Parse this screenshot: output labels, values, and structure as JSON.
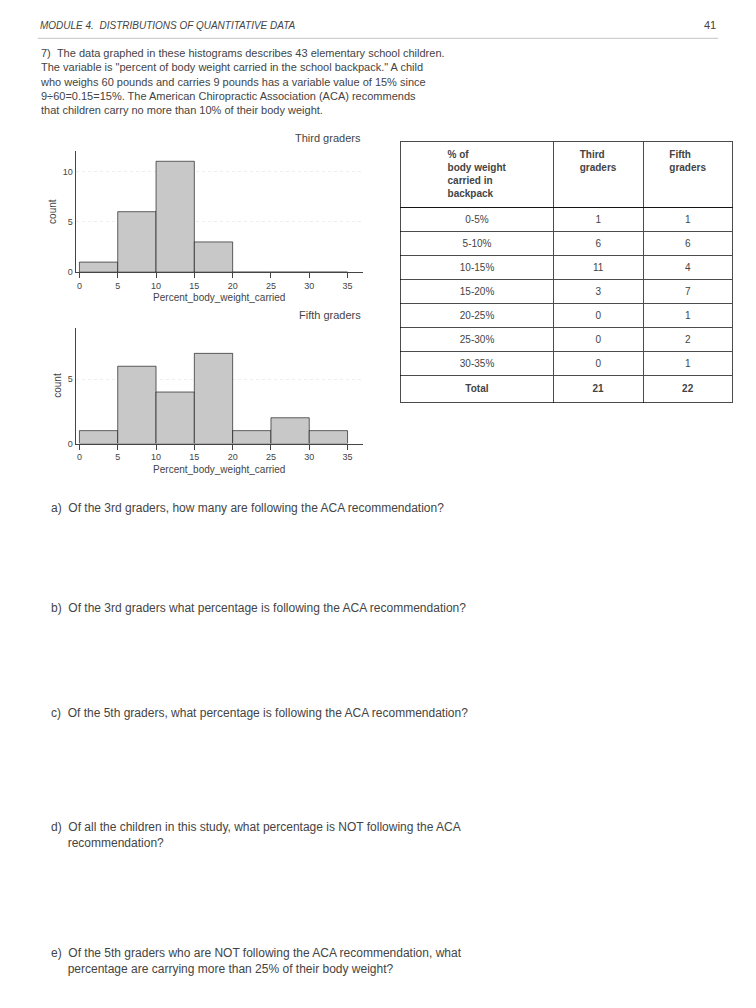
{
  "chart_data": [
    {
      "type": "histogram",
      "title": "Third graders",
      "bins": [
        0,
        5,
        10,
        15,
        20,
        25,
        30,
        35
      ],
      "values": [
        1,
        6,
        11,
        3,
        0,
        0,
        0
      ],
      "x_label": "Percent_body_weight_carried",
      "y_label": "count",
      "xlim": [
        -0.5,
        37
      ],
      "ylim": [
        0,
        12
      ],
      "xticks": [
        0,
        5,
        10,
        15,
        20,
        25,
        30,
        35
      ],
      "yticks": [
        0,
        5,
        10
      ],
      "grid": "y",
      "color": "#c8c8c8"
    },
    {
      "type": "histogram",
      "title": "Fifth graders",
      "bins": [
        0,
        5,
        10,
        15,
        20,
        25,
        30,
        35
      ],
      "values": [
        1,
        6,
        4,
        7,
        1,
        2,
        1
      ],
      "x_label": "Percent_body_weight_carried",
      "y_label": "count",
      "xlim": [
        -0.5,
        37
      ],
      "ylim": [
        0,
        9
      ],
      "xticks": [
        0,
        5,
        10,
        15,
        20,
        25,
        30,
        35
      ],
      "yticks": [
        0,
        5
      ],
      "grid": "y",
      "color": "#c8c8c8"
    },
    {
      "type": "table",
      "headers": [
        "% of\nbody weight\ncarried in\nbackpack",
        "Third\ngraders",
        "Fifth\ngraders"
      ],
      "rows": [
        [
          "0-5%",
          "1",
          "1"
        ],
        [
          "5-10%",
          "6",
          "6"
        ],
        [
          "10-15%",
          "11",
          "4"
        ],
        [
          "15-20%",
          "3",
          "7"
        ],
        [
          "20-25%",
          "0",
          "1"
        ],
        [
          "25-30%",
          "0",
          "2"
        ],
        [
          "30-35%",
          "0",
          "1"
        ],
        [
          "Total",
          "21",
          "22"
        ]
      ]
    }
  ],
  "annotations": [
    "MODULE 4.  DISTRIBUTIONS OF QUANTITATIVE DATA",
    "41",
    "7)  The data graphed in these histograms describes 43 elementary school children.\nThe variable is \"percent of body weight carried in the school backpack.\" A child\nwho weighs 60 pounds and carries 9 pounds has a variable value of 15% since\n9÷60=0.15=15%. The American Chiropractic Association (ACA) recommends\nthat children carry no more than 10% of their body weight.",
    "a)  Of the 3rd graders, how many are following the ACA recommendation?",
    "b)  Of the 3rd graders what percentage is following the ACA recommendation?",
    "c)  Of the 5th graders, what percentage is following the ACA recommendation?",
    "d)  Of all the children in this study, what percentage is NOT following the ACA\n     recommendation?",
    "e)  Of the 5th graders who are NOT following the ACA recommendation, what\n     percentage are carrying more than 25% of their body weight?"
  ]
}
